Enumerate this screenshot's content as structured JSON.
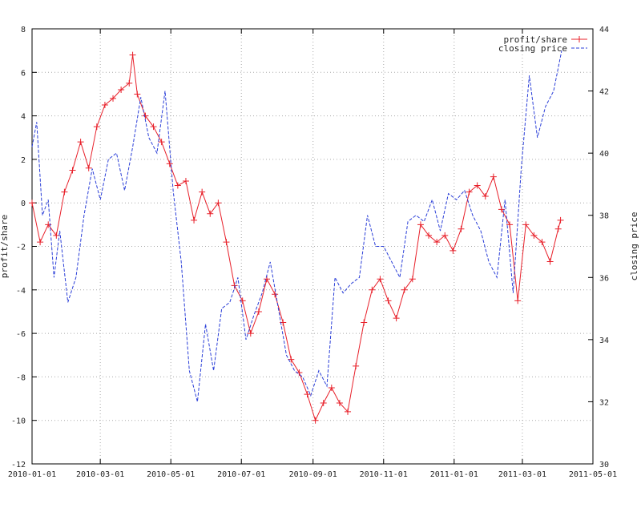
{
  "chart_data": {
    "type": "line",
    "title": "",
    "xlabel": "",
    "ylabel": "profit/share",
    "y2label": "closing price",
    "xlim": [
      "2010-01-01",
      "2011-05-01"
    ],
    "ylim": [
      -12,
      8
    ],
    "y2lim": [
      30,
      44
    ],
    "x_ticks": [
      "2010-01-01",
      "2010-03-01",
      "2010-05-01",
      "2010-07-01",
      "2010-09-01",
      "2010-11-01",
      "2011-01-01",
      "2011-03-01",
      "2011-05-01"
    ],
    "y_ticks": [
      -12,
      -10,
      -8,
      -6,
      -4,
      -2,
      0,
      2,
      4,
      6,
      8
    ],
    "y2_ticks": [
      30,
      32,
      34,
      36,
      38,
      40,
      42,
      44
    ],
    "grid": true,
    "legend_position": "top-right",
    "series": [
      {
        "name": "profit/share",
        "axis": "y",
        "color": "#e8202a",
        "style": "solid-with-plus-markers",
        "x": [
          "2010-01-01",
          "2010-01-08",
          "2010-01-15",
          "2010-01-22",
          "2010-01-29",
          "2010-02-05",
          "2010-02-12",
          "2010-02-19",
          "2010-02-26",
          "2010-03-05",
          "2010-03-12",
          "2010-03-19",
          "2010-03-26",
          "2010-03-29",
          "2010-04-02",
          "2010-04-09",
          "2010-04-16",
          "2010-04-23",
          "2010-04-30",
          "2010-05-07",
          "2010-05-14",
          "2010-05-21",
          "2010-05-28",
          "2010-06-04",
          "2010-06-11",
          "2010-06-18",
          "2010-06-25",
          "2010-07-02",
          "2010-07-09",
          "2010-07-16",
          "2010-07-23",
          "2010-07-30",
          "2010-08-06",
          "2010-08-13",
          "2010-08-20",
          "2010-08-27",
          "2010-09-03",
          "2010-09-10",
          "2010-09-17",
          "2010-09-24",
          "2010-10-01",
          "2010-10-08",
          "2010-10-15",
          "2010-10-22",
          "2010-10-29",
          "2010-11-05",
          "2010-11-12",
          "2010-11-19",
          "2010-11-26",
          "2010-12-03",
          "2010-12-10",
          "2010-12-17",
          "2010-12-24",
          "2010-12-31",
          "2011-01-07",
          "2011-01-14",
          "2011-01-21",
          "2011-01-28",
          "2011-02-04",
          "2011-02-11",
          "2011-02-18",
          "2011-02-25",
          "2011-03-04",
          "2011-03-11",
          "2011-03-18",
          "2011-03-25",
          "2011-04-01",
          "2011-04-03"
        ],
        "values": [
          0.0,
          -1.8,
          -1.0,
          -1.5,
          0.5,
          1.5,
          2.8,
          1.6,
          3.5,
          4.5,
          4.8,
          5.2,
          5.5,
          6.8,
          5.0,
          4.0,
          3.5,
          2.8,
          1.8,
          0.8,
          1.0,
          -0.8,
          0.5,
          -0.5,
          0.0,
          -1.8,
          -3.8,
          -4.5,
          -6.0,
          -5.0,
          -3.5,
          -4.2,
          -5.5,
          -7.2,
          -7.8,
          -8.8,
          -10.0,
          -9.2,
          -8.5,
          -9.2,
          -9.6,
          -7.5,
          -5.5,
          -4.0,
          -3.5,
          -4.5,
          -5.3,
          -4.0,
          -3.5,
          -1.0,
          -1.5,
          -1.8,
          -1.5,
          -2.2,
          -1.2,
          0.5,
          0.8,
          0.3,
          1.2,
          -0.3,
          -1.0,
          -4.5,
          -1.0,
          -1.5,
          -1.8,
          -2.7,
          -1.2,
          -0.8
        ]
      },
      {
        "name": "closing price",
        "axis": "y2",
        "color": "#2a3ed8",
        "style": "dashed",
        "x": [
          "2010-01-01",
          "2010-01-05",
          "2010-01-10",
          "2010-01-15",
          "2010-01-20",
          "2010-01-25",
          "2010-02-01",
          "2010-02-08",
          "2010-02-15",
          "2010-02-22",
          "2010-03-01",
          "2010-03-08",
          "2010-03-15",
          "2010-03-22",
          "2010-03-29",
          "2010-04-05",
          "2010-04-12",
          "2010-04-19",
          "2010-04-26",
          "2010-05-03",
          "2010-05-10",
          "2010-05-17",
          "2010-05-24",
          "2010-05-31",
          "2010-06-07",
          "2010-06-14",
          "2010-06-21",
          "2010-06-28",
          "2010-07-05",
          "2010-07-12",
          "2010-07-19",
          "2010-07-26",
          "2010-08-02",
          "2010-08-09",
          "2010-08-16",
          "2010-08-23",
          "2010-08-30",
          "2010-09-06",
          "2010-09-13",
          "2010-09-20",
          "2010-09-27",
          "2010-10-04",
          "2010-10-11",
          "2010-10-18",
          "2010-10-25",
          "2010-11-01",
          "2010-11-08",
          "2010-11-15",
          "2010-11-22",
          "2010-11-29",
          "2010-12-06",
          "2010-12-13",
          "2010-12-20",
          "2010-12-27",
          "2011-01-03",
          "2011-01-10",
          "2011-01-17",
          "2011-01-24",
          "2011-01-31",
          "2011-02-07",
          "2011-02-14",
          "2011-02-21",
          "2011-02-28",
          "2011-03-07",
          "2011-03-14",
          "2011-03-21",
          "2011-03-28",
          "2011-04-04"
        ],
        "values": [
          40.2,
          41.0,
          38.0,
          38.5,
          36.0,
          37.5,
          35.2,
          36.0,
          38.0,
          39.5,
          38.5,
          39.8,
          40.0,
          38.8,
          40.2,
          41.8,
          40.5,
          40.0,
          42.0,
          38.8,
          36.5,
          33.0,
          32.0,
          34.5,
          33.0,
          35.0,
          35.2,
          36.0,
          34.0,
          34.8,
          35.5,
          36.5,
          35.0,
          33.5,
          33.0,
          32.8,
          32.2,
          33.0,
          32.5,
          36.0,
          35.5,
          35.8,
          36.0,
          38.0,
          37.0,
          37.0,
          36.5,
          36.0,
          37.8,
          38.0,
          37.8,
          38.5,
          37.5,
          38.7,
          38.5,
          38.8,
          38.0,
          37.5,
          36.5,
          36.0,
          38.5,
          35.5,
          39.5,
          42.5,
          40.5,
          41.5,
          42.0,
          43.3
        ]
      }
    ]
  }
}
